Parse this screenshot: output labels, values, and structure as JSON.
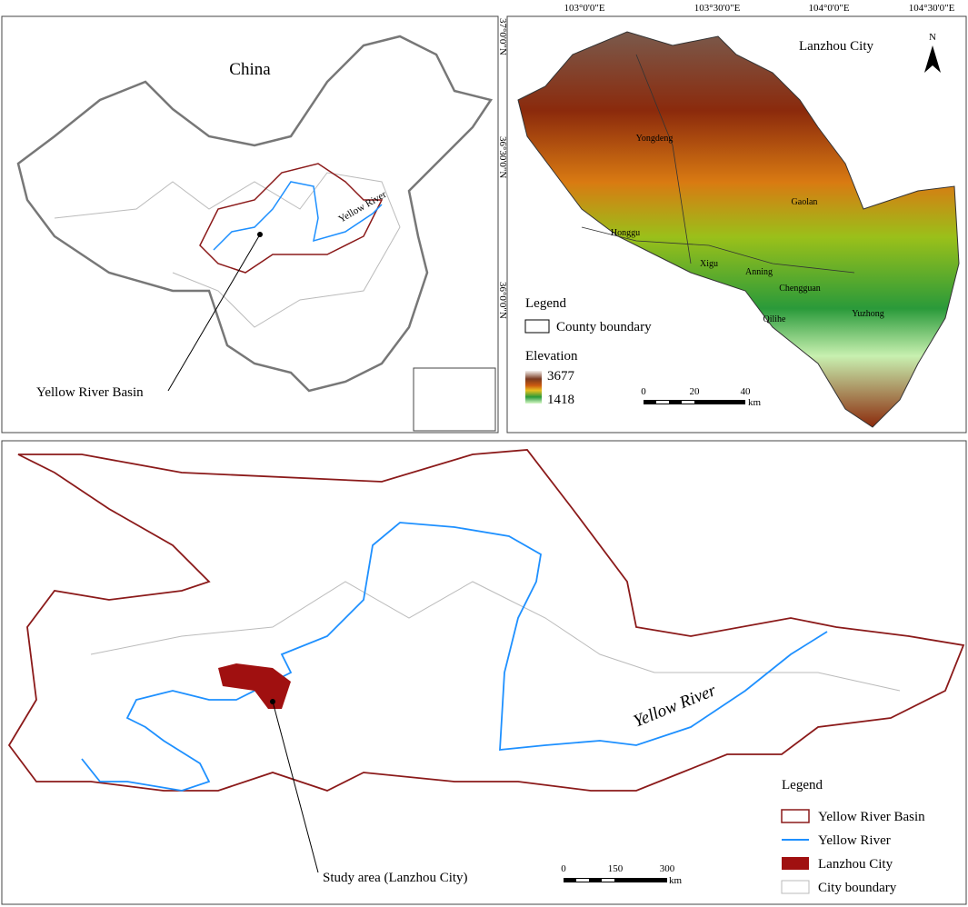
{
  "china_panel": {
    "title": "China",
    "river_label": "Yellow River",
    "basin_label": "Yellow River Basin"
  },
  "lanzhou_panel": {
    "title": "Lanzhou City",
    "north": "N",
    "lon_labels": [
      "103°0'0\"E",
      "103°30'0\"E",
      "104°0'0\"E",
      "104°30'0\"E"
    ],
    "lat_labels": [
      "37°0'0\"N",
      "36°30'0\"N",
      "36°0'0\"N"
    ],
    "counties": [
      "Yongdeng",
      "Gaolan",
      "Honggu",
      "Xigu",
      "Anning",
      "Chengguan",
      "Qilihe",
      "Yuzhong"
    ],
    "legend": {
      "title": "Legend",
      "boundary": "County boundary",
      "elevation": "Elevation",
      "high": "3677",
      "low": "1418"
    },
    "scale": {
      "ticks": [
        "0",
        "20",
        "40"
      ],
      "unit": "km"
    }
  },
  "basin_panel": {
    "river_label": "Yellow River",
    "study_label": "Study area (Lanzhou City)",
    "legend": {
      "title": "Legend",
      "items": [
        "Yellow River Basin",
        "Yellow River",
        "Lanzhou City",
        "City boundary"
      ]
    },
    "scale": {
      "ticks": [
        "0",
        "150",
        "300"
      ],
      "unit": "km"
    }
  }
}
